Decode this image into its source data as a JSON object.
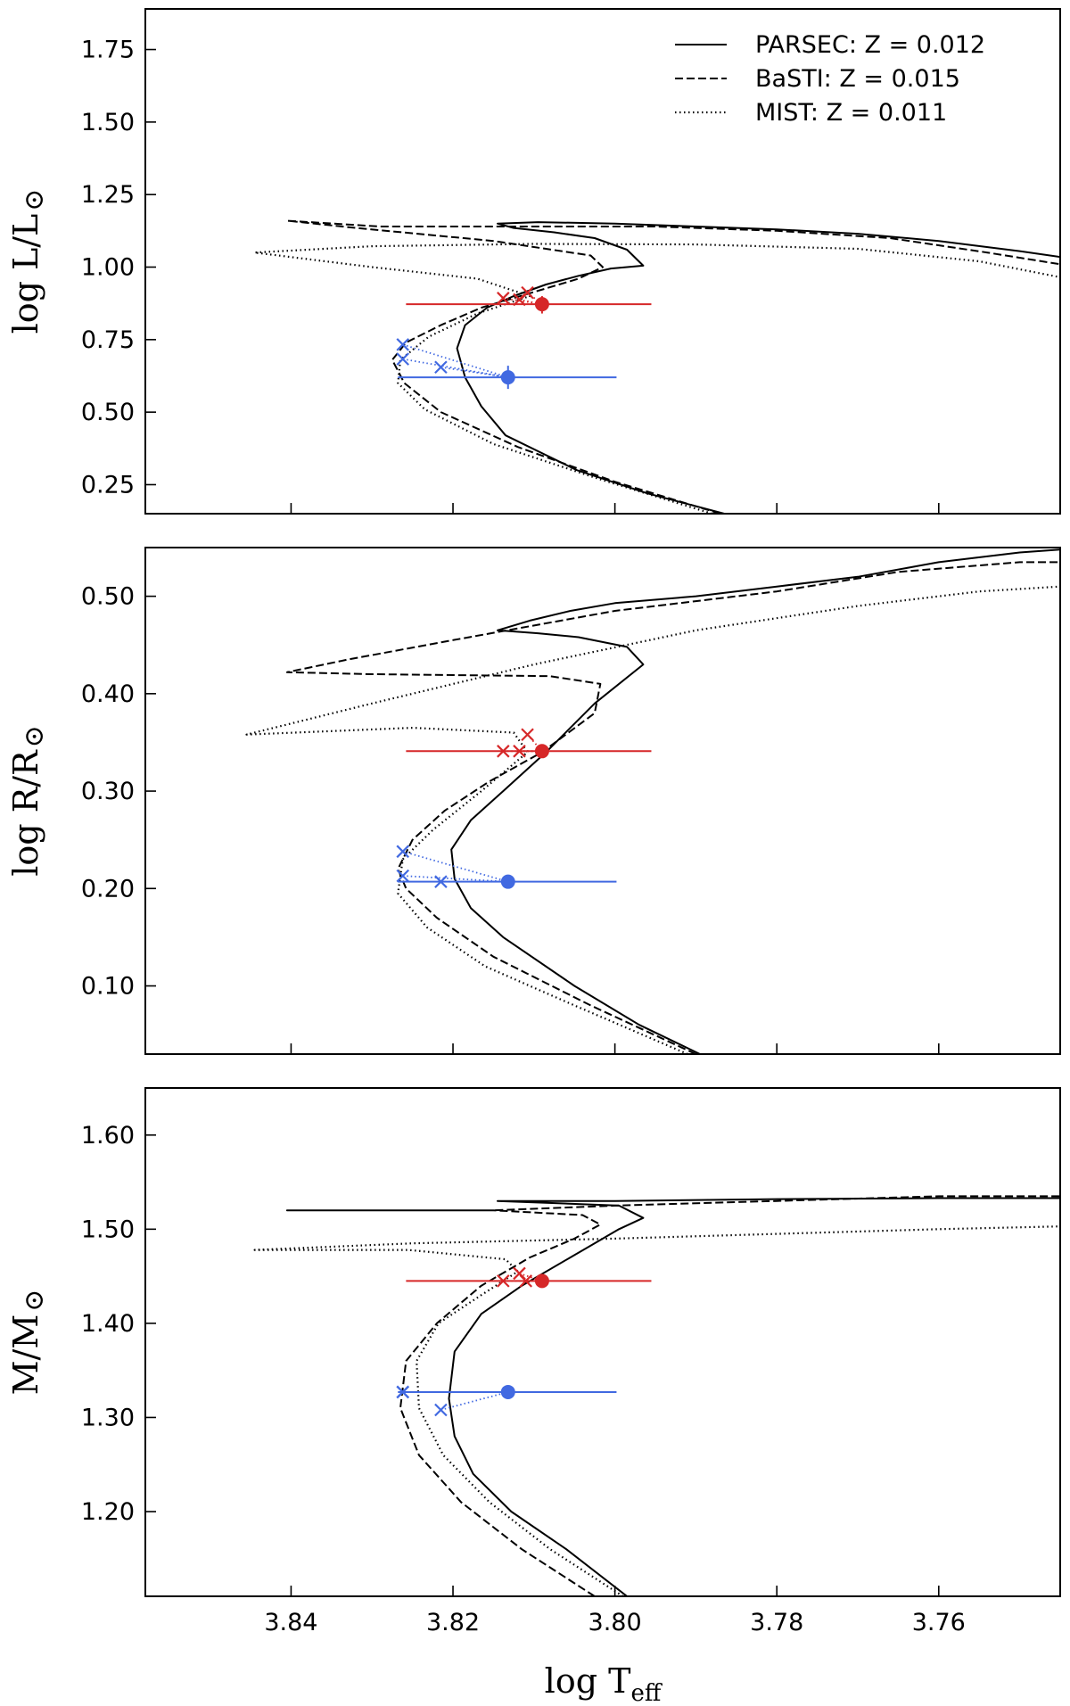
{
  "chart_data": {
    "type": "line",
    "x_axis": {
      "label": "log T",
      "label_sub": "eff",
      "range": [
        3.858,
        3.745
      ],
      "reversed": true,
      "ticks": [
        3.84,
        3.82,
        3.8,
        3.78,
        3.76
      ],
      "tick_labels": [
        "3.84",
        "3.82",
        "3.80",
        "3.78",
        "3.76"
      ]
    },
    "legend": {
      "placement": "top-right",
      "entries": [
        {
          "label": "PARSEC: Z = 0.012",
          "style": "solid"
        },
        {
          "label": "BaSTI: Z = 0.015",
          "style": "dashed"
        },
        {
          "label": "MIST: Z = 0.011",
          "style": "dotted"
        }
      ]
    },
    "colors": {
      "line": "#000000",
      "red": "#d62728",
      "blue": "#4169e1"
    },
    "panels": [
      {
        "ylabel": "log L/L",
        "ylabel_suffix": "⊙",
        "ylim": [
          0.15,
          1.89
        ],
        "yticks": [
          0.25,
          0.5,
          0.75,
          1.0,
          1.25,
          1.5,
          1.75
        ],
        "ytick_labels": [
          "0.25",
          "0.50",
          "0.75",
          "1.00",
          "1.25",
          "1.50",
          "1.75"
        ],
        "series": [
          {
            "name": "PARSEC: Z = 0.012",
            "style": "solid",
            "x": [
              3.7865,
              3.796,
              3.8047,
              3.8135,
              3.8165,
              3.8185,
              3.8195,
              3.8185,
              3.8158,
              3.8125,
              3.8085,
              3.8045,
              3.8005,
              3.7965,
              3.7985,
              3.8025,
              3.8075,
              3.8125,
              3.8145,
              3.8095,
              3.8,
              3.79,
              3.78,
              3.77,
              3.76,
              3.75,
              3.745
            ],
            "y": [
              0.15,
              0.22,
              0.3,
              0.42,
              0.52,
              0.62,
              0.72,
              0.8,
              0.86,
              0.9,
              0.94,
              0.97,
              0.995,
              1.005,
              1.06,
              1.1,
              1.12,
              1.135,
              1.15,
              1.155,
              1.15,
              1.14,
              1.13,
              1.115,
              1.09,
              1.055,
              1.035
            ]
          },
          {
            "name": "BaSTI: Z = 0.015",
            "style": "dashed",
            "x": [
              3.787,
              3.8,
              3.812,
              3.8215,
              3.826,
              3.8275,
              3.8258,
              3.8215,
              3.8165,
              3.8105,
              3.8045,
              3.8015,
              3.803,
              3.815,
              3.832,
              3.8405,
              3.829,
              3.812,
              3.795,
              3.78,
              3.766,
              3.754,
              3.745
            ],
            "y": [
              0.15,
              0.26,
              0.38,
              0.5,
              0.6,
              0.68,
              0.74,
              0.8,
              0.86,
              0.91,
              0.96,
              1.0,
              1.04,
              1.09,
              1.135,
              1.16,
              1.14,
              1.14,
              1.14,
              1.125,
              1.1,
              1.05,
              1.01
            ]
          },
          {
            "name": "MIST: Z = 0.011",
            "style": "dotted",
            "x": [
              3.788,
              3.802,
              3.815,
              3.8235,
              3.8268,
              3.8265,
              3.823,
              3.817,
              3.8105,
              3.817,
              3.83,
              3.8445,
              3.83,
              3.81,
              3.79,
              3.77,
              3.755,
              3.745
            ],
            "y": [
              0.15,
              0.27,
              0.39,
              0.51,
              0.6,
              0.68,
              0.76,
              0.84,
              0.9,
              0.96,
              1.0,
              1.05,
              1.072,
              1.08,
              1.078,
              1.063,
              1.02,
              0.965
            ]
          }
        ],
        "markers": [
          {
            "color": "red",
            "type": "circle",
            "x": 3.809,
            "y": 0.872,
            "xerr": [
              3.8258,
              3.7955
            ],
            "yerr": [
              0.84,
              0.9
            ]
          },
          {
            "color": "red",
            "type": "x",
            "x": 3.8108,
            "y": 0.912
          },
          {
            "color": "red",
            "type": "x",
            "x": 3.8138,
            "y": 0.893
          },
          {
            "color": "red",
            "type": "x",
            "x": 3.8118,
            "y": 0.888
          },
          {
            "color": "blue",
            "type": "circle",
            "x": 3.8132,
            "y": 0.62,
            "xerr": [
              3.8268,
              3.7998
            ],
            "yerr": [
              0.58,
              0.66
            ]
          },
          {
            "color": "blue",
            "type": "x",
            "x": 3.8262,
            "y": 0.733
          },
          {
            "color": "blue",
            "type": "x",
            "x": 3.8262,
            "y": 0.683
          },
          {
            "color": "blue",
            "type": "x",
            "x": 3.8215,
            "y": 0.655
          }
        ]
      },
      {
        "ylabel": "log R/R",
        "ylabel_suffix": "⊙",
        "ylim": [
          0.03,
          0.55
        ],
        "yticks": [
          0.1,
          0.2,
          0.3,
          0.4,
          0.5
        ],
        "ytick_labels": [
          "0.10",
          "0.20",
          "0.30",
          "0.40",
          "0.50"
        ],
        "series": [
          {
            "name": "PARSEC: Z = 0.012",
            "style": "solid",
            "x": [
              3.7895,
              3.797,
              3.805,
              3.8138,
              3.8178,
              3.8198,
              3.8202,
              3.8178,
              3.8138,
              3.8085,
              3.8025,
              3.7965,
              3.7985,
              3.8045,
              3.8095,
              3.8145,
              3.8105,
              3.8055,
              3.8,
              3.79,
              3.78,
              3.77,
              3.76,
              3.75,
              3.745
            ],
            "y": [
              0.03,
              0.06,
              0.1,
              0.15,
              0.18,
              0.21,
              0.24,
              0.27,
              0.3,
              0.34,
              0.39,
              0.43,
              0.448,
              0.458,
              0.462,
              0.465,
              0.475,
              0.485,
              0.493,
              0.5,
              0.51,
              0.52,
              0.535,
              0.545,
              0.548
            ]
          },
          {
            "name": "BaSTI: Z = 0.015",
            "style": "dashed",
            "x": [
              3.79,
              3.803,
              3.815,
              3.822,
              3.8258,
              3.8268,
              3.825,
              3.821,
              3.8155,
              3.809,
              3.8025,
              3.8018,
              3.808,
              3.83,
              3.8405,
              3.833,
              3.82,
              3.8,
              3.78,
              3.765,
              3.75,
              3.745
            ],
            "y": [
              0.03,
              0.08,
              0.13,
              0.17,
              0.2,
              0.22,
              0.25,
              0.28,
              0.31,
              0.34,
              0.38,
              0.41,
              0.418,
              0.42,
              0.422,
              0.435,
              0.455,
              0.485,
              0.505,
              0.525,
              0.535,
              0.535
            ]
          },
          {
            "name": "MIST: Z = 0.011",
            "style": "dotted",
            "x": [
              3.791,
              3.805,
              3.816,
              3.8232,
              3.8268,
              3.8262,
              3.8225,
              3.8165,
              3.8108,
              3.8125,
              3.825,
              3.8455,
              3.83,
              3.81,
              3.79,
              3.77,
              3.755,
              3.745
            ],
            "y": [
              0.03,
              0.08,
              0.12,
              0.16,
              0.195,
              0.23,
              0.26,
              0.3,
              0.34,
              0.36,
              0.365,
              0.358,
              0.39,
              0.43,
              0.465,
              0.49,
              0.505,
              0.51
            ]
          }
        ],
        "markers": [
          {
            "color": "red",
            "type": "circle",
            "x": 3.809,
            "y": 0.341,
            "xerr": [
              3.8258,
              3.7955
            ]
          },
          {
            "color": "red",
            "type": "x",
            "x": 3.8108,
            "y": 0.358
          },
          {
            "color": "red",
            "type": "x",
            "x": 3.8138,
            "y": 0.341
          },
          {
            "color": "red",
            "type": "x",
            "x": 3.8118,
            "y": 0.341
          },
          {
            "color": "blue",
            "type": "circle",
            "x": 3.8132,
            "y": 0.207,
            "xerr": [
              3.8268,
              3.7998
            ]
          },
          {
            "color": "blue",
            "type": "x",
            "x": 3.8262,
            "y": 0.238
          },
          {
            "color": "blue",
            "type": "x",
            "x": 3.8262,
            "y": 0.213
          },
          {
            "color": "blue",
            "type": "x",
            "x": 3.8215,
            "y": 0.207
          }
        ]
      },
      {
        "ylabel": "M/M",
        "ylabel_suffix": "⊙",
        "ylim": [
          1.11,
          1.65
        ],
        "yticks": [
          1.2,
          1.3,
          1.4,
          1.5,
          1.6
        ],
        "ytick_labels": [
          "1.20",
          "1.30",
          "1.40",
          "1.50",
          "1.60"
        ],
        "series": [
          {
            "name": "PARSEC: Z = 0.012",
            "style": "solid",
            "x": [
              3.7985,
              3.806,
              3.8128,
              3.8175,
              3.8198,
              3.8205,
              3.8198,
              3.8165,
              3.8115,
              3.8055,
              3.7995,
              3.7965,
              3.7995,
              3.8145,
              3.8,
              3.78,
              3.76,
              3.745
            ],
            "y": [
              1.11,
              1.16,
              1.2,
              1.24,
              1.28,
              1.32,
              1.37,
              1.41,
              1.44,
              1.47,
              1.5,
              1.512,
              1.525,
              1.53,
              1.53,
              1.532,
              1.533,
              1.533
            ]
          },
          {
            "name": "BaSTI: Z = 0.015",
            "style": "dashed",
            "x": [
              3.8025,
              3.8115,
              3.819,
              3.8242,
              3.8265,
              3.8258,
              3.822,
              3.8165,
              3.8105,
              3.805,
              3.8018,
              3.804,
              3.815,
              3.8405,
              3.815,
              3.8,
              3.78,
              3.76,
              3.745
            ],
            "y": [
              1.11,
              1.16,
              1.21,
              1.26,
              1.31,
              1.36,
              1.4,
              1.44,
              1.47,
              1.49,
              1.505,
              1.515,
              1.52,
              1.52,
              1.52,
              1.525,
              1.53,
              1.535,
              1.535
            ]
          },
          {
            "name": "MIST: Z = 0.011",
            "style": "dotted",
            "x": [
              3.799,
              3.808,
              3.8155,
              3.8212,
              3.8242,
              3.8245,
              3.8218,
              3.8165,
              3.812,
              3.8135,
              3.8255,
              3.8445,
              3.825,
              3.8,
              3.78,
              3.76,
              3.745
            ],
            "y": [
              1.11,
              1.16,
              1.21,
              1.26,
              1.31,
              1.36,
              1.4,
              1.43,
              1.455,
              1.468,
              1.478,
              1.478,
              1.485,
              1.49,
              1.495,
              1.5,
              1.503
            ]
          }
        ],
        "markers": [
          {
            "color": "red",
            "type": "circle",
            "x": 3.809,
            "y": 1.445,
            "xerr": [
              3.8258,
              3.7955
            ]
          },
          {
            "color": "red",
            "type": "x",
            "x": 3.8118,
            "y": 1.453
          },
          {
            "color": "red",
            "type": "x",
            "x": 3.8138,
            "y": 1.445
          },
          {
            "color": "red",
            "type": "x",
            "x": 3.811,
            "y": 1.445
          },
          {
            "color": "blue",
            "type": "circle",
            "x": 3.8132,
            "y": 1.327,
            "xerr": [
              3.8268,
              3.7998
            ]
          },
          {
            "color": "blue",
            "type": "x",
            "x": 3.8262,
            "y": 1.327
          },
          {
            "color": "blue",
            "type": "x",
            "x": 3.8262,
            "y": 1.327
          },
          {
            "color": "blue",
            "type": "x",
            "x": 3.8215,
            "y": 1.308
          }
        ]
      }
    ]
  }
}
